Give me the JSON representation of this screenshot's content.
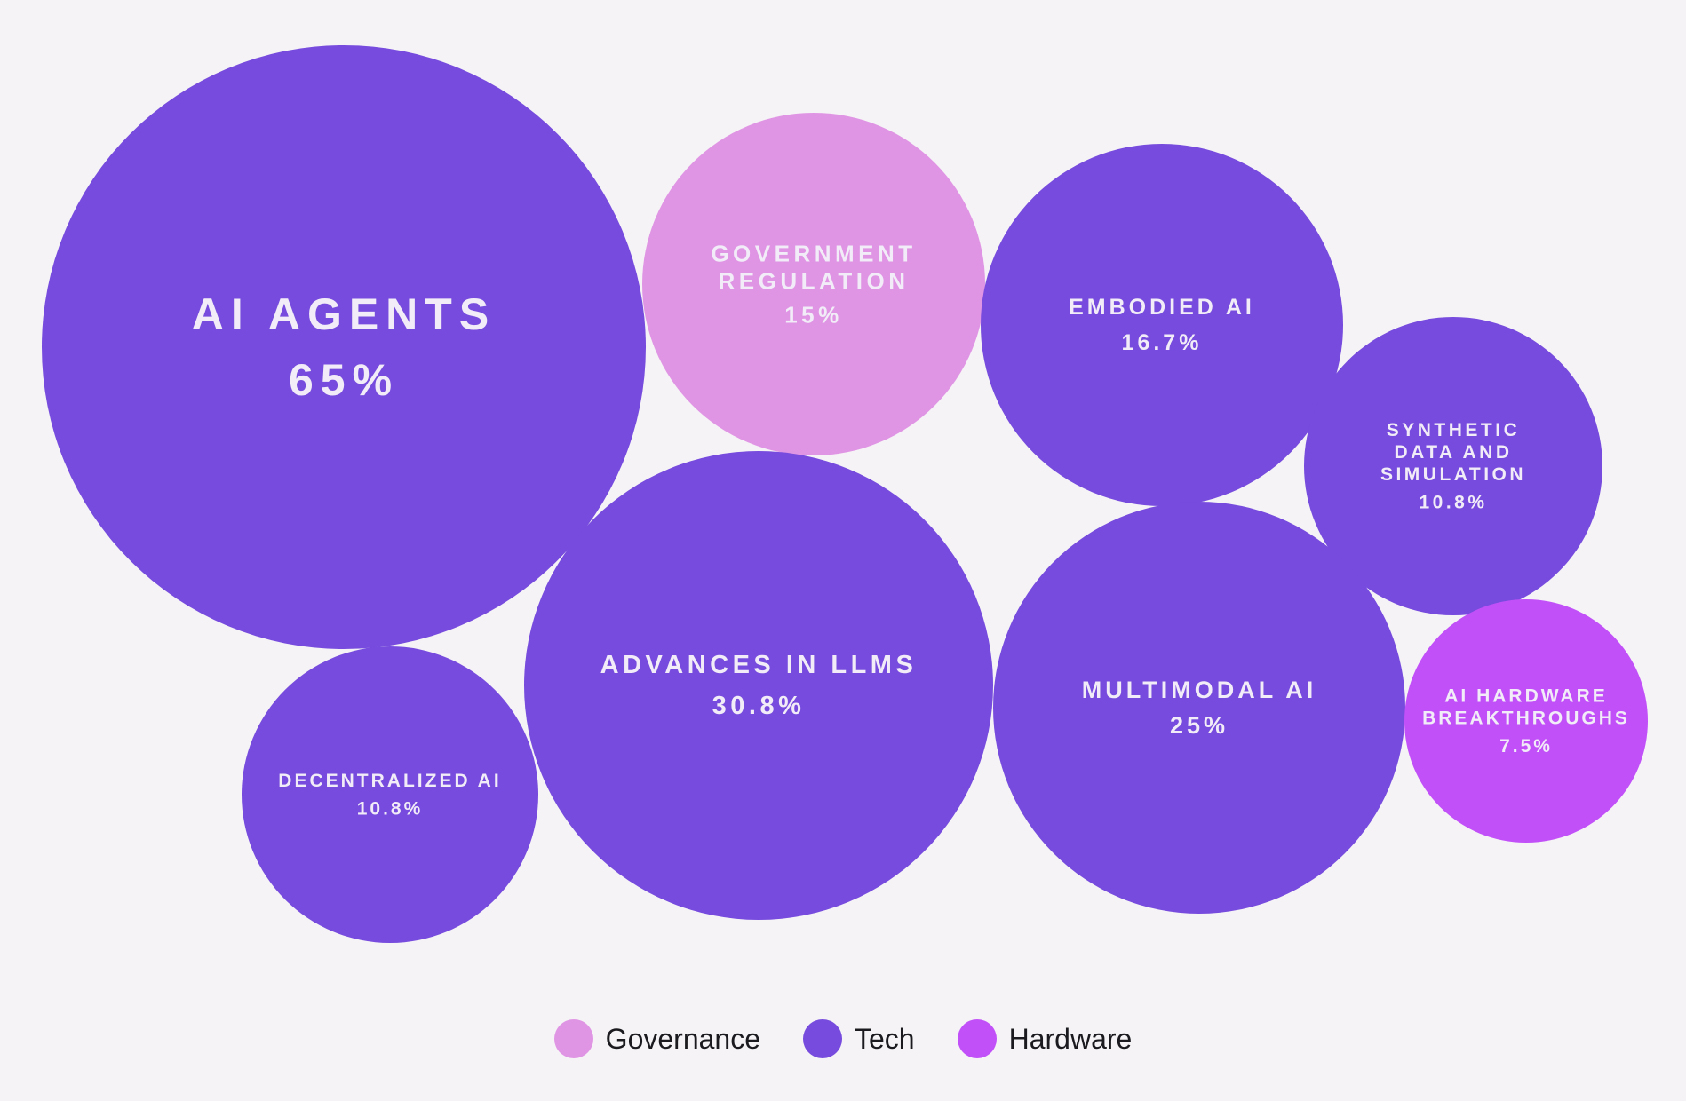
{
  "chart_data": {
    "type": "bubble",
    "bubbles": [
      {
        "name": "AI AGENTS",
        "value": 65,
        "value_label": "65%",
        "category": "Tech"
      },
      {
        "name": "GOVERNMENT REGULATION",
        "value": 15,
        "value_label": "15%",
        "category": "Governance"
      },
      {
        "name": "EMBODIED AI",
        "value": 16.7,
        "value_label": "16.7%",
        "category": "Tech"
      },
      {
        "name": "SYNTHETIC DATA AND SIMULATION",
        "value": 10.8,
        "value_label": "10.8%",
        "category": "Tech"
      },
      {
        "name": "ADVANCES IN LLMS",
        "value": 30.8,
        "value_label": "30.8%",
        "category": "Tech"
      },
      {
        "name": "MULTIMODAL AI",
        "value": 25,
        "value_label": "25%",
        "category": "Tech"
      },
      {
        "name": "AI HARDWARE BREAKTHROUGHS",
        "value": 7.5,
        "value_label": "7.5%",
        "category": "Hardware"
      },
      {
        "name": "DECENTRALIZED AI",
        "value": 10.8,
        "value_label": "10.8%",
        "category": "Tech"
      }
    ],
    "legend": [
      {
        "name": "Governance",
        "color": "#e094e4"
      },
      {
        "name": "Tech",
        "color": "#764bdd"
      },
      {
        "name": "Hardware",
        "color": "#c150f8"
      }
    ],
    "legend_position": "bottom-center"
  }
}
